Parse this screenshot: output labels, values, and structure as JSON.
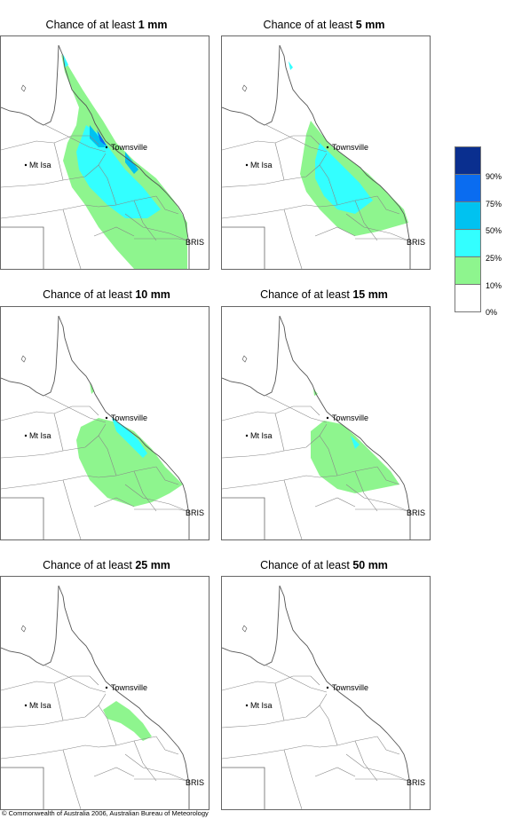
{
  "panels": [
    {
      "prefix": "Chance of at least ",
      "amount": "1 mm"
    },
    {
      "prefix": "Chance of at least ",
      "amount": "5 mm"
    },
    {
      "prefix": "Chance of at least ",
      "amount": "10 mm"
    },
    {
      "prefix": "Chance of at least ",
      "amount": "15 mm"
    },
    {
      "prefix": "Chance of at least ",
      "amount": "25 mm"
    },
    {
      "prefix": "Chance of at least ",
      "amount": "50 mm"
    }
  ],
  "places": {
    "townsville": "Townsville",
    "mt_isa": "Mt Isa",
    "brisbane": "BRIS"
  },
  "legend": {
    "labels": [
      "90%",
      "75%",
      "50%",
      "25%",
      "10%",
      "0%"
    ],
    "colors": [
      "#0a2f8f",
      "#0a6cf0",
      "#00c2f0",
      "#33ffff",
      "#8ef58e",
      "#ffffff"
    ]
  },
  "copyright": "© Commonwealth of Australia 2006, Australian Bureau of Meteorology"
}
